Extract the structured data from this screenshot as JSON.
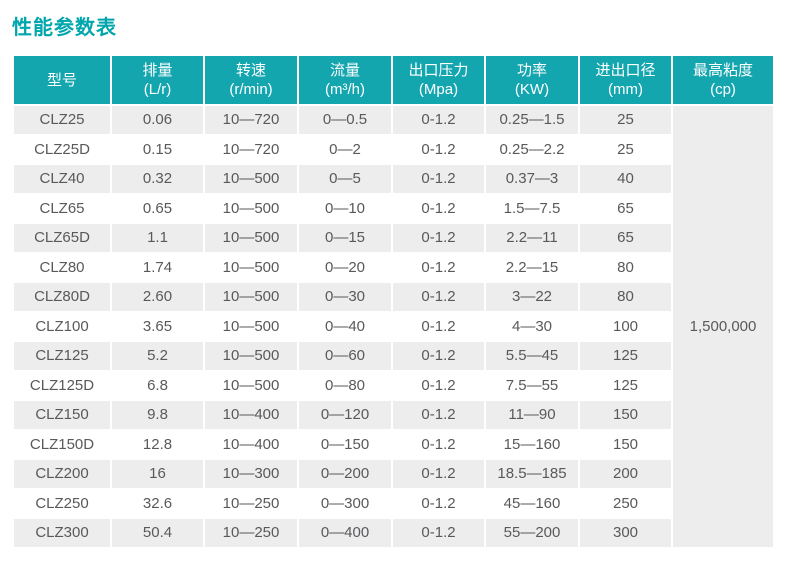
{
  "page_title": "性能参数表",
  "colors": {
    "accent_teal": "#14a6af",
    "title_teal": "#00a6ad",
    "row_alt_bg": "#ededed",
    "body_text": "#58595b",
    "header_text": "#ffffff"
  },
  "chart_data": {
    "type": "table",
    "title": "性能参数表",
    "columns": [
      {
        "name": "型号",
        "unit": ""
      },
      {
        "name": "排量",
        "unit": "(L/r)"
      },
      {
        "name": "转速",
        "unit": "(r/min)"
      },
      {
        "name": "流量",
        "unit": "(m³/h)"
      },
      {
        "name": "出口压力",
        "unit": "(Mpa)"
      },
      {
        "name": "功率",
        "unit": "(KW)"
      },
      {
        "name": "进出口径",
        "unit": "(mm)"
      },
      {
        "name": "最高粘度",
        "unit": "(cp)"
      }
    ],
    "rows": [
      [
        "CLZ25",
        "0.06",
        "10—720",
        "0—0.5",
        "0-1.2",
        "0.25—1.5",
        "25"
      ],
      [
        "CLZ25D",
        "0.15",
        "10—720",
        "0—2",
        "0-1.2",
        "0.25—2.2",
        "25"
      ],
      [
        "CLZ40",
        "0.32",
        "10—500",
        "0—5",
        "0-1.2",
        "0.37—3",
        "40"
      ],
      [
        "CLZ65",
        "0.65",
        "10—500",
        "0—10",
        "0-1.2",
        "1.5—7.5",
        "65"
      ],
      [
        "CLZ65D",
        "1.1",
        "10—500",
        "0—15",
        "0-1.2",
        "2.2—11",
        "65"
      ],
      [
        "CLZ80",
        "1.74",
        "10—500",
        "0—20",
        "0-1.2",
        "2.2—15",
        "80"
      ],
      [
        "CLZ80D",
        "2.60",
        "10—500",
        "0—30",
        "0-1.2",
        "3—22",
        "80"
      ],
      [
        "CLZ100",
        "3.65",
        "10—500",
        "0—40",
        "0-1.2",
        "4—30",
        "100"
      ],
      [
        "CLZ125",
        "5.2",
        "10—500",
        "0—60",
        "0-1.2",
        "5.5—45",
        "125"
      ],
      [
        "CLZ125D",
        "6.8",
        "10—500",
        "0—80",
        "0-1.2",
        "7.5—55",
        "125"
      ],
      [
        "CLZ150",
        "9.8",
        "10—400",
        "0—120",
        "0-1.2",
        "11—90",
        "150"
      ],
      [
        "CLZ150D",
        "12.8",
        "10—400",
        "0—150",
        "0-1.2",
        "15—160",
        "150"
      ],
      [
        "CLZ200",
        "16",
        "10—300",
        "0—200",
        "0-1.2",
        "18.5—185",
        "200"
      ],
      [
        "CLZ250",
        "32.6",
        "10—250",
        "0—300",
        "0-1.2",
        "45—160",
        "250"
      ],
      [
        "CLZ300",
        "50.4",
        "10—250",
        "0—400",
        "0-1.2",
        "55—200",
        "300"
      ]
    ],
    "merged_last_column_value": "1,500,000",
    "layout": {
      "striped": true,
      "merged_column_index": 7,
      "merged_column_spans_all_rows": true
    }
  }
}
